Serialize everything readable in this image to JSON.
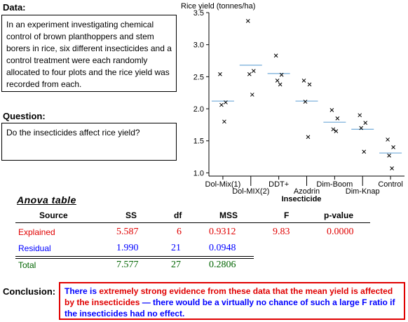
{
  "data_section": {
    "heading": "Data:",
    "text": "In an experiment investigating chemical control of brown planthoppers and stem borers in rice, six different insecticides and a control treatment were each randomly allocated to four plots and the rice yield was recorded from each."
  },
  "question_section": {
    "heading": "Question:",
    "text": "Do the insecticides affect rice yield?"
  },
  "chart_data": {
    "type": "scatter",
    "ylabel": "Rice yield (tonnes/ha)",
    "xlabel": "Insecticide",
    "ylim": [
      0.95,
      3.5
    ],
    "yticks": [
      "1.0",
      "1.5",
      "2.0",
      "2.5",
      "3.0",
      "3.5"
    ],
    "yticks_values": [
      1.0,
      1.5,
      2.0,
      2.5,
      3.0,
      3.5
    ],
    "categories": [
      "Dol-Mix(1)",
      "Dol-MIX(2)",
      "DDT+",
      "Azodrin",
      "Dim-Boom",
      "Dim-Knap",
      "Control"
    ],
    "points": [
      [
        2.54,
        2.1,
        2.06,
        1.8
      ],
      [
        3.37,
        2.59,
        2.54,
        2.22
      ],
      [
        2.83,
        2.53,
        2.44,
        2.38
      ],
      [
        2.44,
        2.38,
        2.11,
        1.56
      ],
      [
        1.98,
        1.85,
        1.68,
        1.65
      ],
      [
        1.9,
        1.78,
        1.7,
        1.33
      ],
      [
        1.52,
        1.4,
        1.27,
        1.07
      ]
    ],
    "means": [
      2.12,
      2.68,
      2.55,
      2.12,
      1.79,
      1.68,
      1.31
    ]
  },
  "anova": {
    "title": "Anova table",
    "headers": {
      "source": "Source",
      "ss": "SS",
      "df": "df",
      "mss": "MSS",
      "f": "F",
      "p": "p-value"
    },
    "explained": {
      "label": "Explained",
      "ss": "5.587",
      "df": "6",
      "mss": "0.9312",
      "f": "9.83",
      "p": "0.0000"
    },
    "residual": {
      "label": "Residual",
      "ss": "1.990",
      "df": "21",
      "mss": "0.0948"
    },
    "total": {
      "label": "Total",
      "ss": "7.577",
      "df": "27",
      "mss": "0.2806"
    },
    "colors": {
      "explained": "#e00000",
      "residual": "#0000ff",
      "total": "#006400"
    }
  },
  "conclusion": {
    "heading": "Conclusion:",
    "part1": "There is ",
    "part2": "extremely strong evidence from these data that the mean yield is affected by the insecticides",
    "part3": " — there would be a virtually no chance of such a large F ratio if the insecticides had no effect."
  }
}
